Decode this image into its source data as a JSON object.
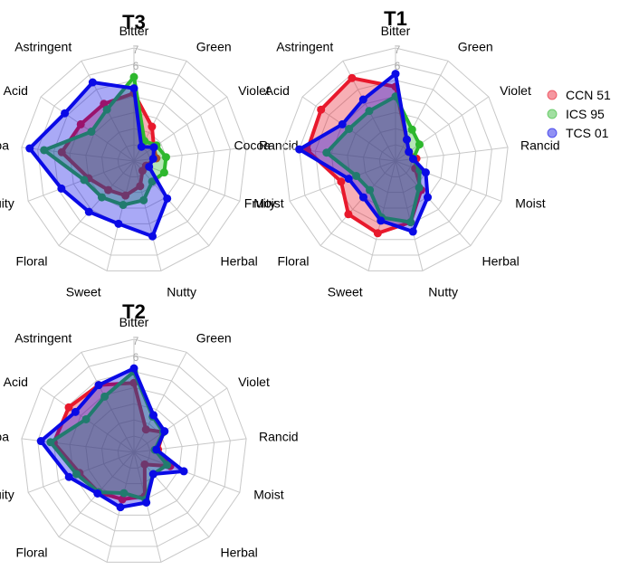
{
  "chart_data": {
    "type": "radar",
    "axes": [
      "Bitter",
      "Green",
      "Violet",
      "Rancid",
      "Moist",
      "Herbal",
      "Nutty",
      "Sweet",
      "Floral",
      "Fruity",
      "Cocoa",
      "Acid",
      "Astringent"
    ],
    "tick_labels": [
      "7",
      "6"
    ],
    "rlim": [
      0,
      7
    ],
    "legend": {
      "position": "right",
      "entries": [
        "CCN 51",
        "ICS 95",
        "TCS 01"
      ]
    },
    "colors": {
      "CCN 51": "#e8192c",
      "ICS 95": "#2eb82e",
      "TCS 01": "#0a0ae6"
    },
    "panels": [
      {
        "title": "T3",
        "series": [
          {
            "name": "CCN 51",
            "values": [
              4.2,
              2.4,
              1.5,
              1.4,
              0.8,
              0.8,
              1.6,
              2.2,
              2.4,
              3.0,
              4.5,
              4.0,
              4.0
            ]
          },
          {
            "name": "ICS 95",
            "values": [
              5.2,
              1.4,
              1.7,
              2.0,
              2.0,
              1.7,
              2.5,
              2.8,
              3.0,
              3.3,
              5.6,
              3.2,
              3.6
            ]
          },
          {
            "name": "TCS 01",
            "values": [
              4.5,
              1.0,
              1.5,
              1.2,
              1.0,
              3.1,
              4.8,
              4.0,
              4.2,
              4.8,
              6.5,
              5.2,
              5.5
            ]
          }
        ]
      },
      {
        "title": "T1",
        "series": [
          {
            "name": "CCN 51",
            "values": [
              4.6,
              1.5,
              1.0,
              1.3,
              1.3,
              2.4,
              3.9,
              4.6,
              4.4,
              3.6,
              5.5,
              5.6,
              5.8
            ]
          },
          {
            "name": "ICS 95",
            "values": [
              4.0,
              2.2,
              1.8,
              1.1,
              1.6,
              2.2,
              3.9,
              3.6,
              2.4,
              2.6,
              4.3,
              3.5,
              3.5
            ]
          },
          {
            "name": "TCS 01",
            "values": [
              5.4,
              1.5,
              1.0,
              1.1,
              2.0,
              3.0,
              4.5,
              3.8,
              3.0,
              3.1,
              6.0,
              4.0,
              4.3
            ]
          }
        ]
      },
      {
        "title": "T2",
        "series": [
          {
            "name": "CCN 51",
            "values": [
              4.3,
              1.6,
              2.2,
              1.5,
              2.4,
              1.0,
              2.8,
              3.0,
              3.3,
              3.6,
              5.0,
              4.9,
              4.7
            ]
          },
          {
            "name": "ICS 95",
            "values": [
              5.0,
              2.5,
              2.2,
              1.3,
              2.2,
              1.8,
              3.0,
              2.6,
              3.3,
              3.8,
              5.2,
              3.6,
              3.9
            ]
          },
          {
            "name": "TCS 01",
            "values": [
              5.2,
              2.6,
              2.3,
              1.4,
              3.3,
              1.8,
              3.2,
              3.5,
              3.4,
              4.3,
              5.8,
              4.4,
              4.7
            ]
          }
        ]
      }
    ]
  }
}
